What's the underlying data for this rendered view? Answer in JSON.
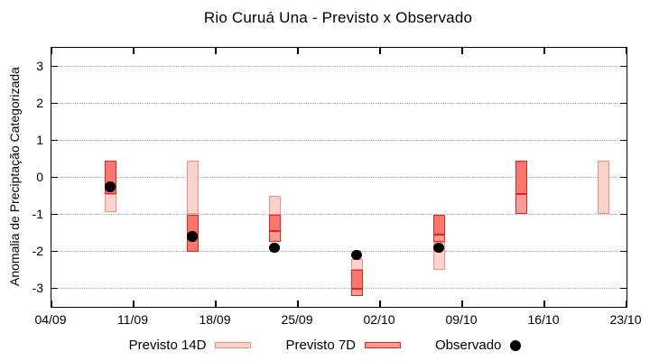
{
  "title": "Rio Curuá Una - Previsto x Observado",
  "chart_data": {
    "type": "bar",
    "title": "Rio Curuá Una - Previsto x Observado",
    "xlabel": "",
    "ylabel": "Anomalia de Preciptação Categorizada",
    "ylim": [
      -3.5,
      3.5
    ],
    "yticks": [
      -3,
      -2,
      -1,
      0,
      1,
      2,
      3
    ],
    "xtick_labels": [
      "04/09",
      "11/09",
      "18/09",
      "25/09",
      "02/10",
      "09/10",
      "16/10",
      "23/10"
    ],
    "xtick_days": [
      0,
      7,
      14,
      21,
      28,
      35,
      42,
      49
    ],
    "x_total_days": 49,
    "grid": "horizontal dotted at integer values",
    "legend_position": "below",
    "series": [
      {
        "name": "Previsto 14D",
        "type": "box-range",
        "fill": "#fcd3cc",
        "border": "#f0907f"
      },
      {
        "name": "Previsto 7D",
        "type": "box-range",
        "fill": "#fb9d97",
        "border": "#e8231b"
      },
      {
        "name": "Observado",
        "type": "point",
        "color": "#000000"
      }
    ],
    "shade_legend": {
      "light": "Previsto 14D only",
      "medium": "Previsto 7D only",
      "strong": "overlap of Previsto 7D over Previsto 14D"
    },
    "styles": {
      "light": {
        "fill": "#fcd3cc",
        "border": "#f0907f"
      },
      "medium": {
        "fill": "#fb9d97",
        "border": "#e8231b"
      },
      "strong": {
        "fill": "#f9776e",
        "border": "#e8231b"
      }
    },
    "groups": [
      {
        "date": "09/09",
        "day": 5,
        "segments": [
          {
            "from": 0.45,
            "to": -0.45,
            "style": "strong"
          },
          {
            "from": -0.45,
            "to": -0.95,
            "style": "light"
          }
        ],
        "observed": -0.25
      },
      {
        "date": "16/09",
        "day": 12,
        "segments": [
          {
            "from": 0.45,
            "to": -1.0,
            "style": "light"
          },
          {
            "from": -1.0,
            "to": -2.0,
            "style": "strong"
          }
        ],
        "observed": -1.6
      },
      {
        "date": "23/09",
        "day": 19,
        "segments": [
          {
            "from": -0.5,
            "to": -1.0,
            "style": "light"
          },
          {
            "from": -1.0,
            "to": -1.45,
            "style": "strong"
          },
          {
            "from": -1.45,
            "to": -1.75,
            "style": "medium"
          }
        ],
        "observed": -1.9
      },
      {
        "date": "30/09",
        "day": 26,
        "segments": [
          {
            "from": -2.2,
            "to": -2.5,
            "style": "light"
          },
          {
            "from": -2.5,
            "to": -3.0,
            "style": "strong"
          },
          {
            "from": -3.0,
            "to": -3.2,
            "style": "medium"
          }
        ],
        "observed": -2.1
      },
      {
        "date": "07/10",
        "day": 33,
        "segments": [
          {
            "from": -1.0,
            "to": -1.55,
            "style": "strong"
          },
          {
            "from": -1.55,
            "to": -1.75,
            "style": "medium"
          },
          {
            "from": -1.75,
            "to": -2.5,
            "style": "light"
          }
        ],
        "observed": -1.9
      },
      {
        "date": "14/10",
        "day": 40,
        "segments": [
          {
            "from": 0.45,
            "to": -0.45,
            "style": "strong"
          },
          {
            "from": -0.45,
            "to": -1.0,
            "style": "medium"
          }
        ],
        "observed": null
      },
      {
        "date": "21/10",
        "day": 47,
        "segments": [
          {
            "from": 0.45,
            "to": -1.0,
            "style": "light"
          }
        ],
        "observed": null
      }
    ]
  },
  "legend": {
    "items": [
      {
        "label": "Previsto 14D",
        "swatch": "light"
      },
      {
        "label": "Previsto 7D",
        "swatch": "medium"
      },
      {
        "label": "Observado",
        "swatch": "dot"
      }
    ]
  },
  "colors": {
    "background": "#ffffff",
    "axis": "#000000",
    "gridline": "#a9a9a9",
    "observed_dot": "#000000",
    "light_fill": "#fcd3cc",
    "light_border": "#f0907f",
    "medium_fill": "#fb9d97",
    "strong_fill": "#f9776e",
    "red_border": "#e8231b"
  }
}
